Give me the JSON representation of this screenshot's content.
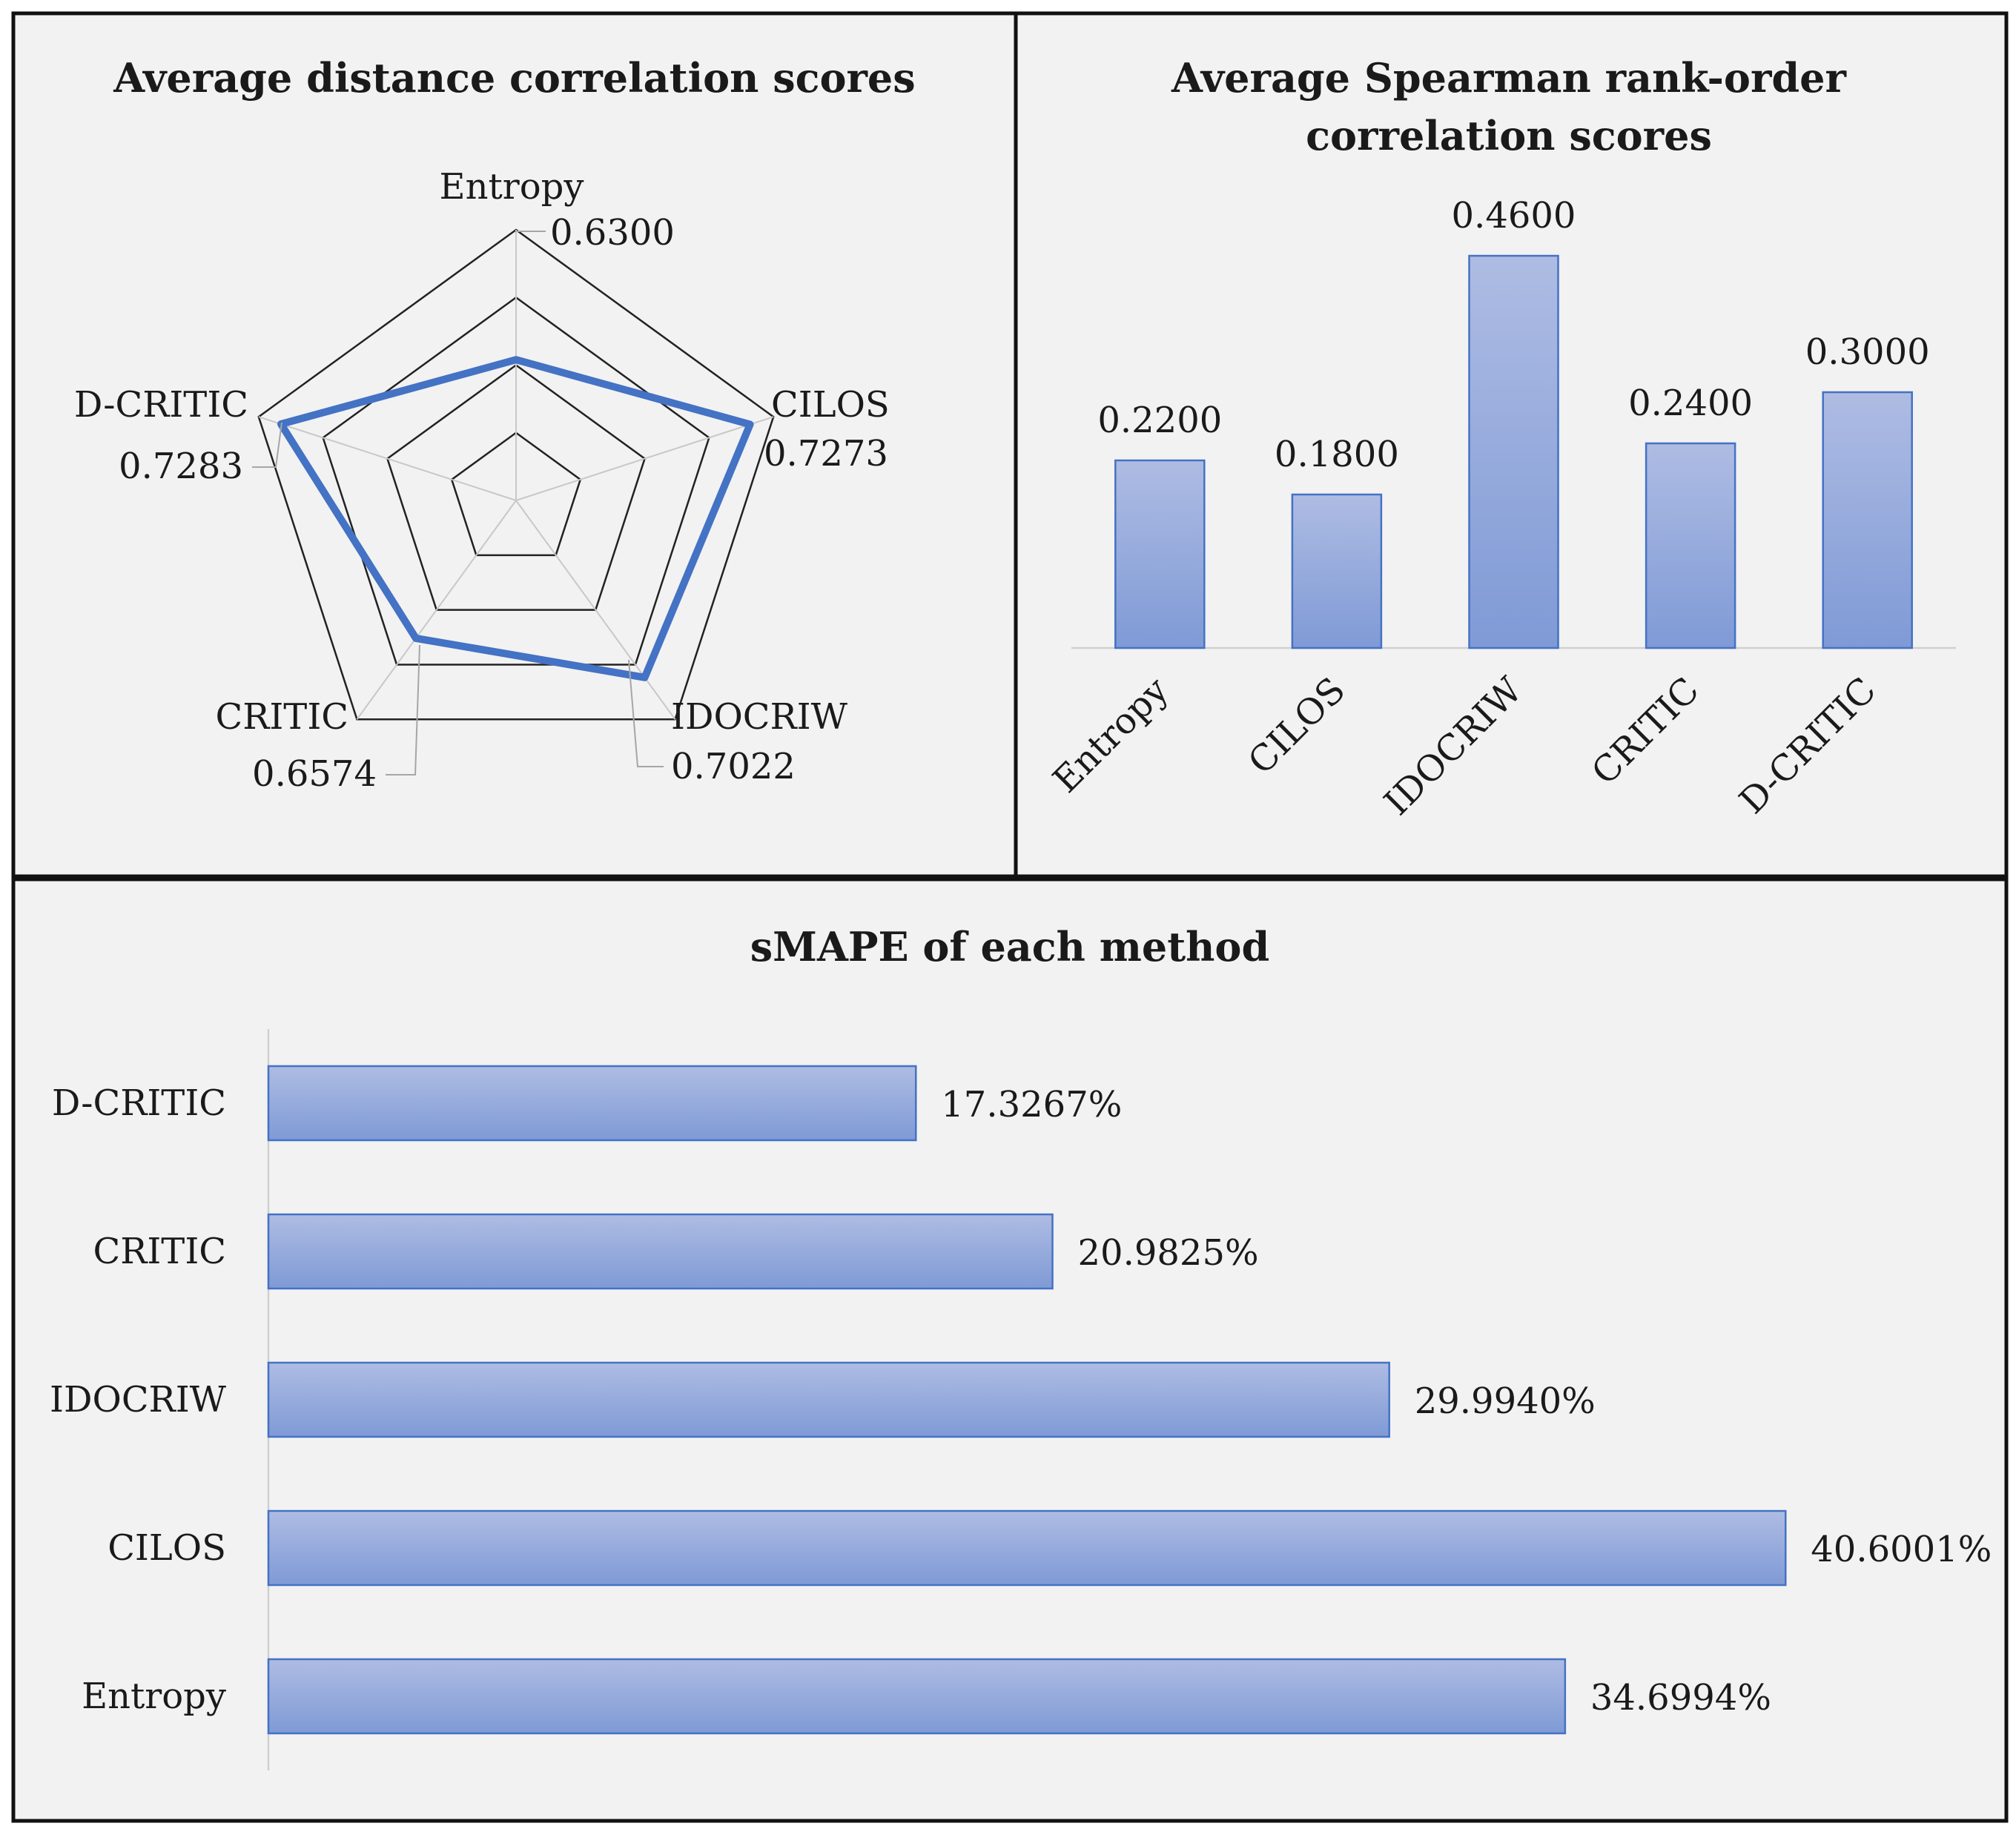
{
  "chart_data": [
    {
      "type": "radar",
      "title": "Average distance correlation scores",
      "categories": [
        "Entropy",
        "CILOS",
        "IDOCRIW",
        "CRITIC",
        "D-CRITIC"
      ],
      "values": [
        0.63,
        0.7273,
        0.7022,
        0.6574,
        0.7283
      ],
      "value_labels": [
        "0.6300",
        "0.7273",
        "0.7022",
        "0.6574",
        "0.7283"
      ],
      "range": [
        0.5,
        0.75
      ],
      "series_color": "#4472C4"
    },
    {
      "type": "bar",
      "title_line1": "Average Spearman rank-order",
      "title_line2": "correlation scores",
      "categories": [
        "Entropy",
        "CILOS",
        "IDOCRIW",
        "CRITIC",
        "D-CRITIC"
      ],
      "values": [
        0.22,
        0.18,
        0.46,
        0.24,
        0.3
      ],
      "value_labels": [
        "0.2200",
        "0.1800",
        "0.4600",
        "0.2400",
        "0.3000"
      ],
      "ylim": [
        0,
        0.5
      ]
    },
    {
      "type": "bar",
      "orientation": "horizontal",
      "title": "sMAPE of each method",
      "categories": [
        "D-CRITIC",
        "CRITIC",
        "IDOCRIW",
        "CILOS",
        "Entropy"
      ],
      "values": [
        17.3267,
        20.9825,
        29.994,
        40.6001,
        34.6994
      ],
      "value_labels": [
        "17.3267%",
        "20.9825%",
        "29.9940%",
        "40.6001%",
        "34.6994%"
      ],
      "xlim": [
        0,
        45
      ]
    }
  ],
  "colors": {
    "bar_top": "#A9B8E0",
    "bar_bottom": "#7B98D6",
    "bar_edge": "#4472C4",
    "panel_bg": "#F2F2F2"
  }
}
